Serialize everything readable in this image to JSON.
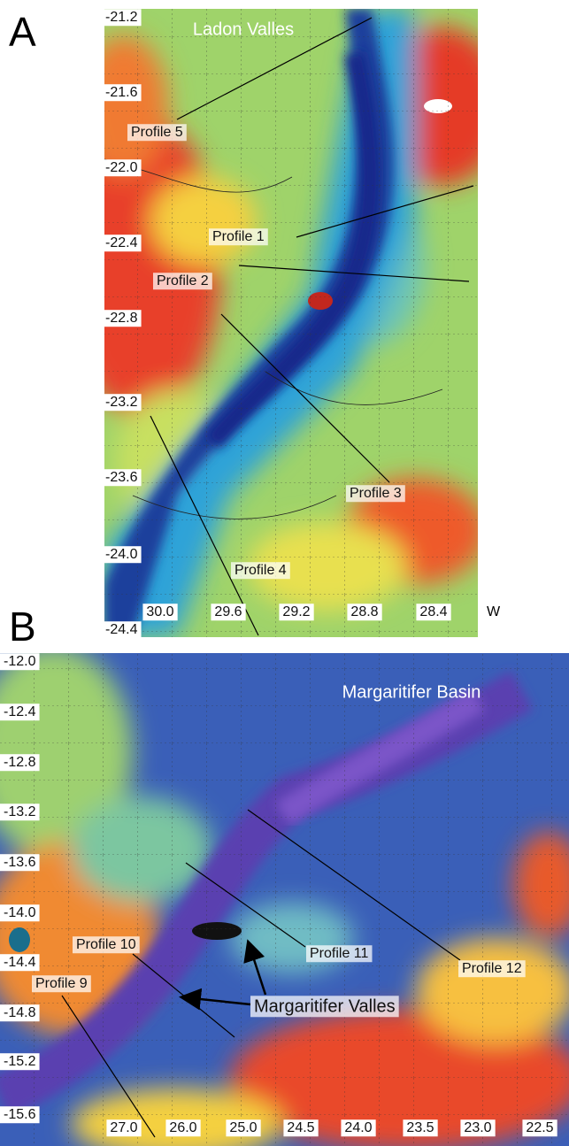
{
  "panels": [
    {
      "label": "A",
      "title": "Ladon Valles",
      "lat_labels": [
        "-21.2",
        "-21.6",
        "-22.0",
        "-22.4",
        "-22.8",
        "-23.2",
        "-23.6",
        "-24.0",
        "-24.4"
      ],
      "lon_labels": [
        "30.0",
        "29.6",
        "29.2",
        "28.8",
        "28.4"
      ],
      "lon_unit": "W",
      "profiles": [
        "Profile 5",
        "Profile 1",
        "Profile 2",
        "Profile 3",
        "Profile 4"
      ]
    },
    {
      "label": "B",
      "title": "Margaritifer Basin",
      "lat_labels": [
        "-12.0",
        "-12.4",
        "-12.8",
        "-13.2",
        "-13.6",
        "-14.0",
        "-14.4",
        "-14.8",
        "-15.2",
        "-15.6"
      ],
      "lon_labels": [
        "27.0",
        "26.0",
        "25.0",
        "24.5",
        "24.0",
        "23.5",
        "23.0",
        "22.5"
      ],
      "profiles": [
        "Profile 10",
        "Profile 9",
        "Profile 11",
        "Profile 12"
      ],
      "annotation": "Margaritifer Valles"
    }
  ]
}
